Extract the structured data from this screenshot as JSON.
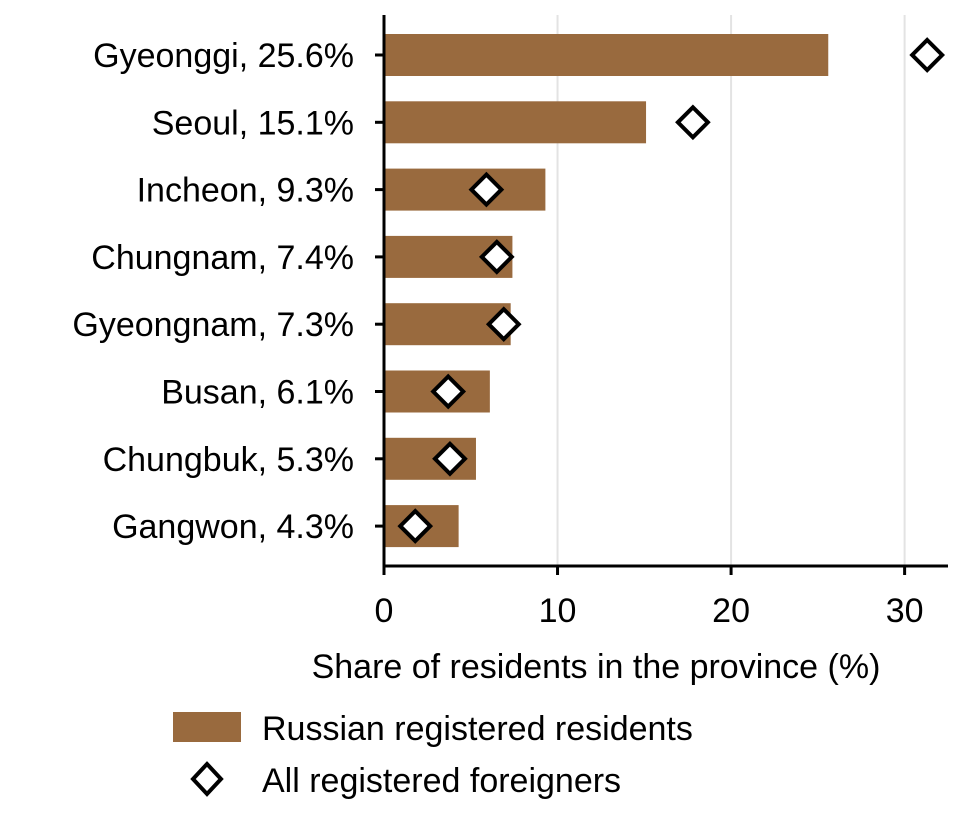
{
  "chart_data": {
    "type": "bar",
    "orientation": "horizontal",
    "categories": [
      "Gyeonggi, 25.6%",
      "Seoul, 15.1%",
      "Incheon, 9.3%",
      "Chungnam, 7.4%",
      "Gyeongnam, 7.3%",
      "Busan, 6.1%",
      "Chungbuk, 5.3%",
      "Gangwon, 4.3%"
    ],
    "series": [
      {
        "name": "Russian registered residents",
        "kind": "bar",
        "color": "#996a3e",
        "values": [
          25.6,
          15.1,
          9.3,
          7.4,
          7.3,
          6.1,
          5.3,
          4.3
        ]
      },
      {
        "name": "All registered foreigners",
        "kind": "marker",
        "marker": "diamond-open",
        "color": "#000000",
        "values": [
          31.3,
          17.8,
          5.9,
          6.5,
          6.9,
          3.7,
          3.8,
          1.8
        ]
      }
    ],
    "xlabel": "Share of residents in the province (%)",
    "ylabel": "",
    "title": "",
    "xlim": [
      0,
      32.5
    ],
    "xticks": [
      "0",
      "10",
      "20",
      "30"
    ],
    "xtick_values": [
      0,
      10,
      20,
      30
    ],
    "grid": "vertical",
    "legend_position": "bottom"
  }
}
